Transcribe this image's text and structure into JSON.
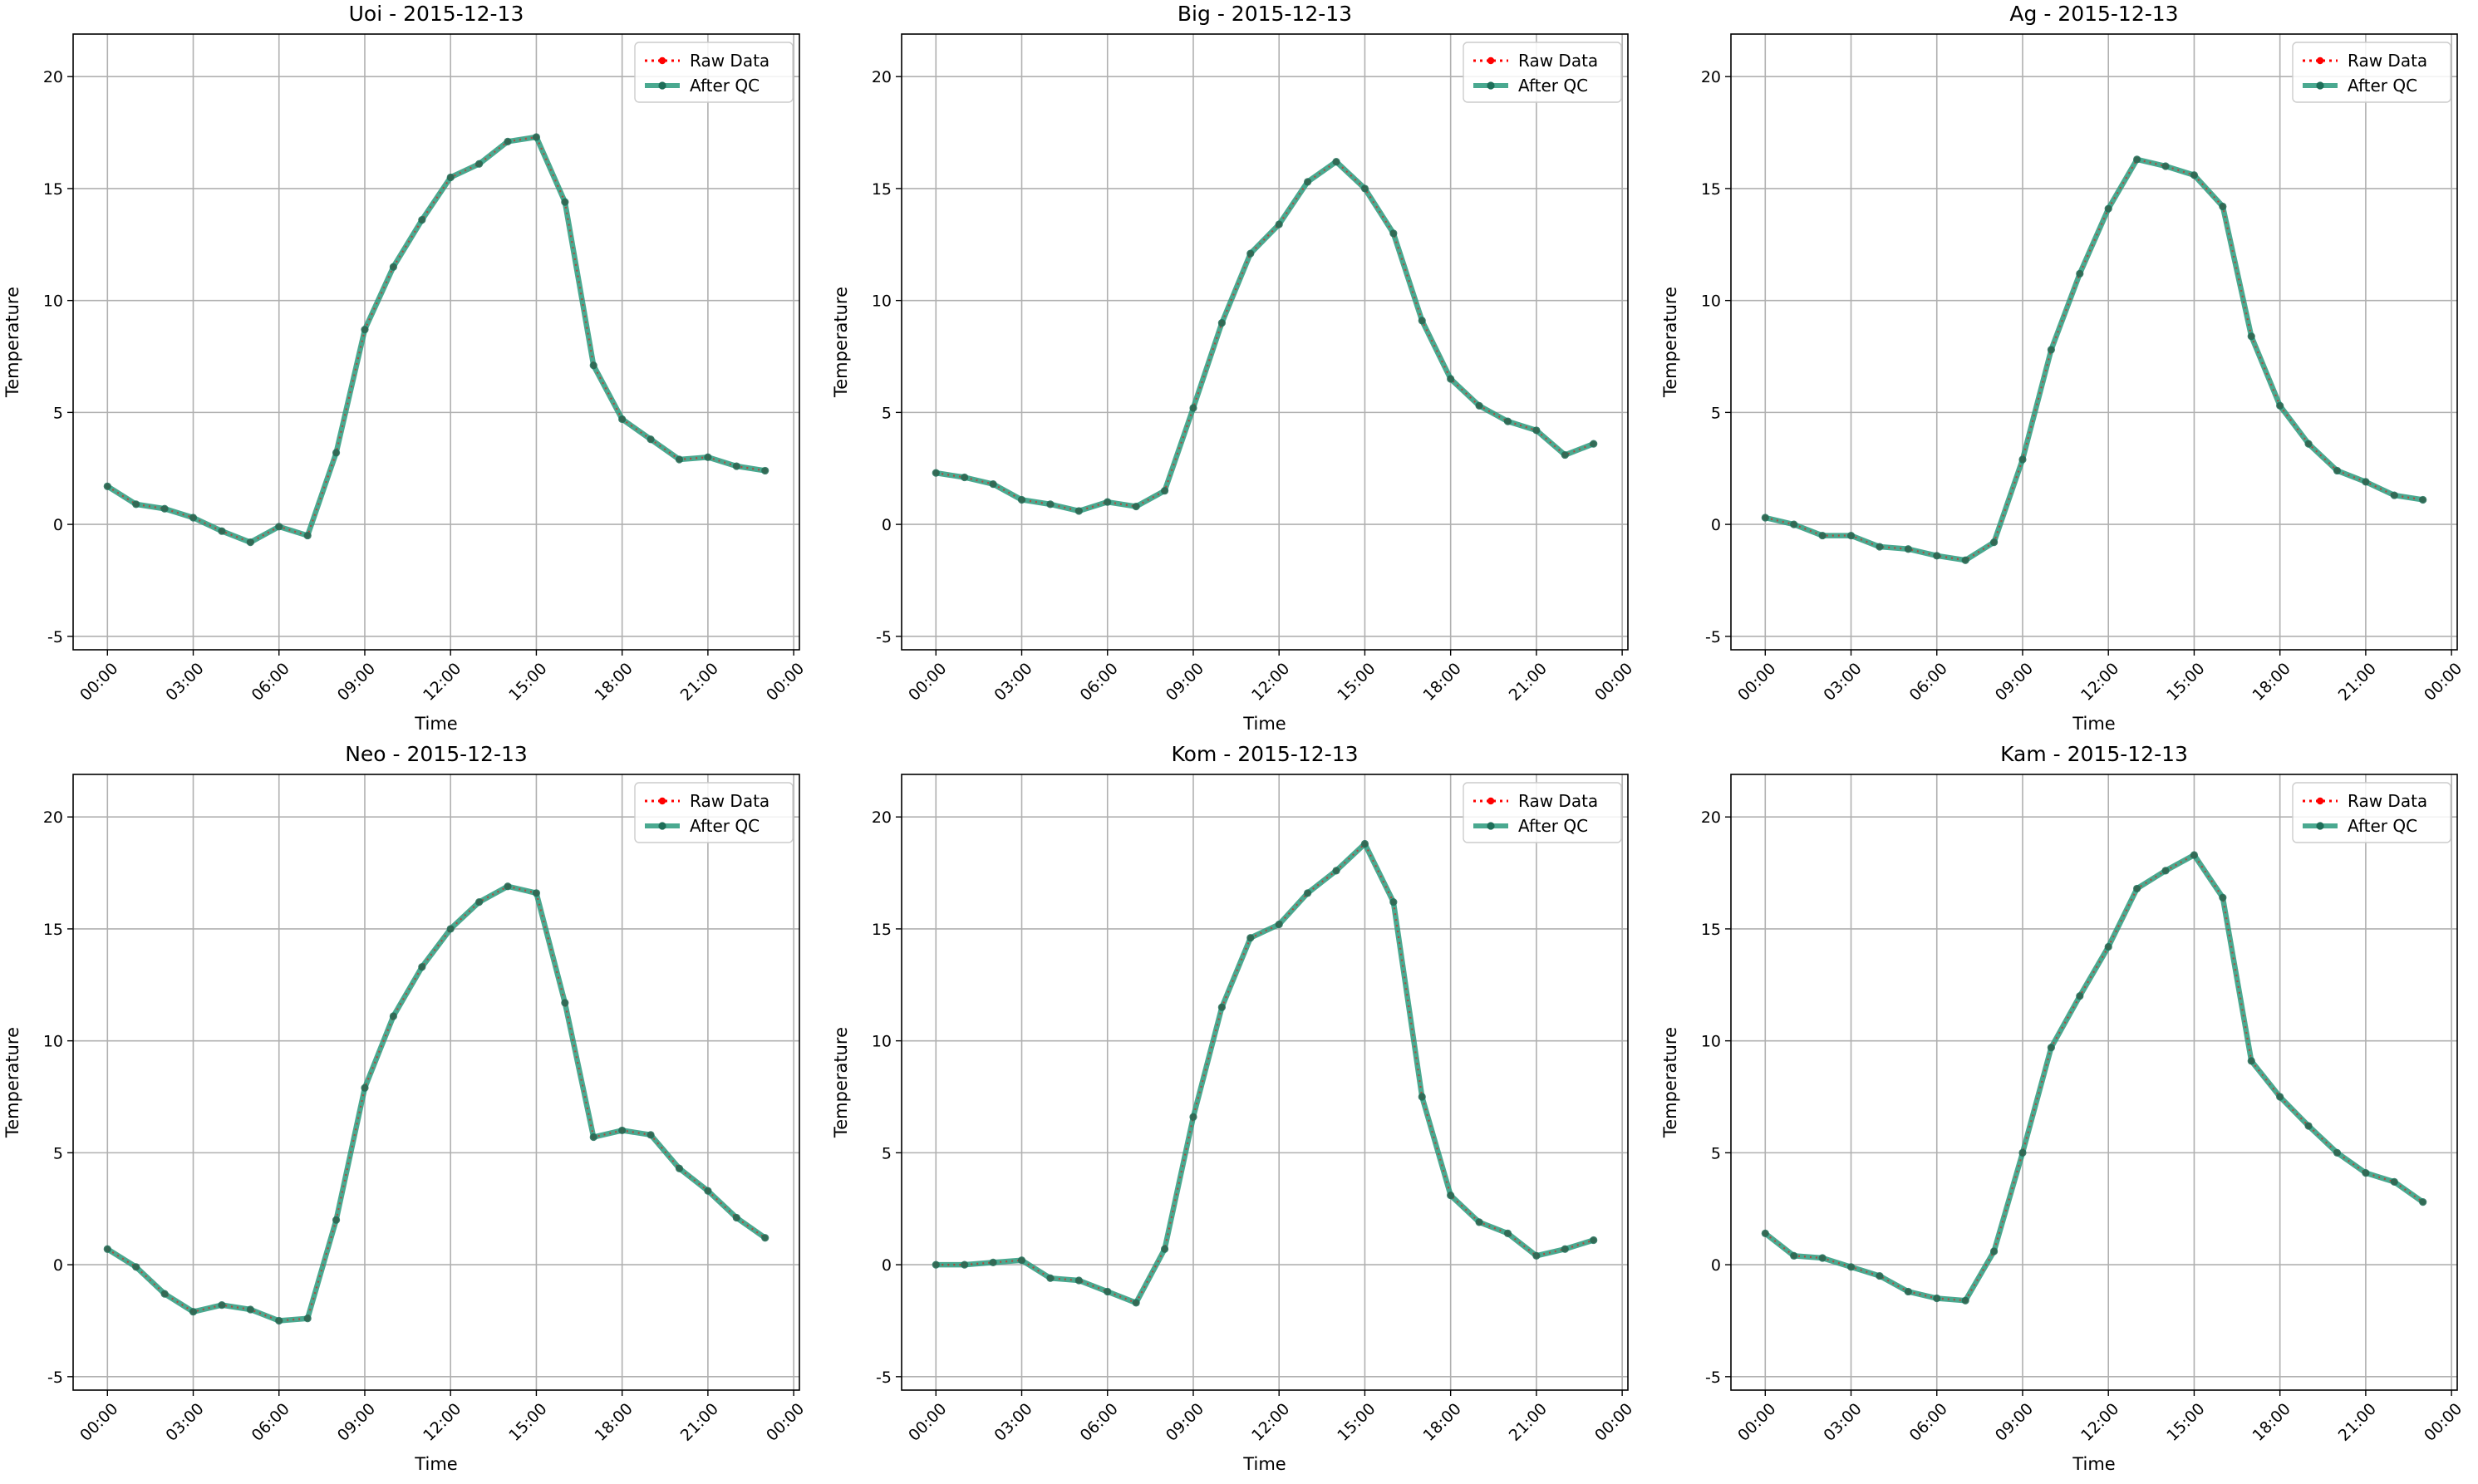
{
  "figure": {
    "background": "#ffffff"
  },
  "legend_entries": [
    "Raw Data",
    "After QC"
  ],
  "colors": {
    "raw": "#ff0000",
    "qc": "#2a9a7c",
    "grid": "#b0b0b0",
    "marker_qc": "#1d6e58"
  },
  "chart_data": [
    {
      "type": "line",
      "title": "Uoi - 2015-12-13",
      "xlabel": "Time",
      "ylabel": "Temperature",
      "xlim": [
        "2015-12-12 22:48",
        "2015-12-14 00:12"
      ],
      "ylim": [
        -5.6,
        21.9
      ],
      "grid": true,
      "legend": "top-right",
      "x": [
        "00:00",
        "01:00",
        "02:00",
        "03:00",
        "04:00",
        "05:00",
        "06:00",
        "07:00",
        "08:00",
        "09:00",
        "10:00",
        "11:00",
        "12:00",
        "13:00",
        "14:00",
        "15:00",
        "16:00",
        "17:00",
        "18:00",
        "19:00",
        "20:00",
        "21:00",
        "22:00",
        "23:00"
      ],
      "x_ticks": [
        "00:00",
        "03:00",
        "06:00",
        "09:00",
        "12:00",
        "15:00",
        "18:00",
        "21:00",
        "00:00"
      ],
      "y_ticks": [
        -5,
        0,
        5,
        10,
        15,
        20
      ],
      "series": [
        {
          "name": "Raw Data",
          "values": [
            1.7,
            0.9,
            0.7,
            0.3,
            -0.3,
            -0.8,
            -0.1,
            -0.5,
            3.2,
            8.7,
            11.5,
            13.6,
            15.5,
            16.1,
            17.1,
            17.3,
            14.4,
            7.1,
            4.7,
            3.8,
            2.9,
            3.0,
            2.6,
            2.4
          ]
        },
        {
          "name": "After QC",
          "values": [
            1.7,
            0.9,
            0.7,
            0.3,
            -0.3,
            -0.8,
            -0.1,
            -0.5,
            3.2,
            8.7,
            11.5,
            13.6,
            15.5,
            16.1,
            17.1,
            17.3,
            14.4,
            7.1,
            4.7,
            3.8,
            2.9,
            3.0,
            2.6,
            2.4
          ]
        }
      ]
    },
    {
      "type": "line",
      "title": "Big - 2015-12-13",
      "xlabel": "Time",
      "ylabel": "Temperature",
      "xlim": [
        "2015-12-12 22:48",
        "2015-12-14 00:12"
      ],
      "ylim": [
        -5.6,
        21.9
      ],
      "grid": true,
      "legend": "top-right",
      "x": [
        "00:00",
        "01:00",
        "02:00",
        "03:00",
        "04:00",
        "05:00",
        "06:00",
        "07:00",
        "08:00",
        "09:00",
        "10:00",
        "11:00",
        "12:00",
        "13:00",
        "14:00",
        "15:00",
        "16:00",
        "17:00",
        "18:00",
        "19:00",
        "20:00",
        "21:00",
        "22:00",
        "23:00"
      ],
      "x_ticks": [
        "00:00",
        "03:00",
        "06:00",
        "09:00",
        "12:00",
        "15:00",
        "18:00",
        "21:00",
        "00:00"
      ],
      "y_ticks": [
        -5,
        0,
        5,
        10,
        15,
        20
      ],
      "series": [
        {
          "name": "Raw Data",
          "values": [
            2.3,
            2.1,
            1.8,
            1.1,
            0.9,
            0.6,
            1.0,
            0.8,
            1.5,
            5.2,
            9.0,
            12.1,
            13.4,
            15.3,
            16.2,
            15.0,
            13.0,
            9.1,
            6.5,
            5.3,
            4.6,
            4.2,
            3.1,
            3.6
          ]
        },
        {
          "name": "After QC",
          "values": [
            2.3,
            2.1,
            1.8,
            1.1,
            0.9,
            0.6,
            1.0,
            0.8,
            1.5,
            5.2,
            9.0,
            12.1,
            13.4,
            15.3,
            16.2,
            15.0,
            13.0,
            9.1,
            6.5,
            5.3,
            4.6,
            4.2,
            3.1,
            3.6
          ]
        }
      ]
    },
    {
      "type": "line",
      "title": "Ag - 2015-12-13",
      "xlabel": "Time",
      "ylabel": "Temperature",
      "xlim": [
        "2015-12-12 22:48",
        "2015-12-14 00:12"
      ],
      "ylim": [
        -5.6,
        21.9
      ],
      "grid": true,
      "legend": "top-right",
      "x": [
        "00:00",
        "01:00",
        "02:00",
        "03:00",
        "04:00",
        "05:00",
        "06:00",
        "07:00",
        "08:00",
        "09:00",
        "10:00",
        "11:00",
        "12:00",
        "13:00",
        "14:00",
        "15:00",
        "16:00",
        "17:00",
        "18:00",
        "19:00",
        "20:00",
        "21:00",
        "22:00",
        "23:00"
      ],
      "x_ticks": [
        "00:00",
        "03:00",
        "06:00",
        "09:00",
        "12:00",
        "15:00",
        "18:00",
        "21:00",
        "00:00"
      ],
      "y_ticks": [
        -5,
        0,
        5,
        10,
        15,
        20
      ],
      "series": [
        {
          "name": "Raw Data",
          "values": [
            0.3,
            0.0,
            -0.5,
            -0.5,
            -1.0,
            -1.1,
            -1.4,
            -1.6,
            -0.8,
            2.9,
            7.8,
            11.2,
            14.1,
            16.3,
            16.0,
            15.6,
            14.2,
            8.4,
            5.3,
            3.6,
            2.4,
            1.9,
            1.3,
            1.1
          ]
        },
        {
          "name": "After QC",
          "values": [
            0.3,
            0.0,
            -0.5,
            -0.5,
            -1.0,
            -1.1,
            -1.4,
            -1.6,
            -0.8,
            2.9,
            7.8,
            11.2,
            14.1,
            16.3,
            16.0,
            15.6,
            14.2,
            8.4,
            5.3,
            3.6,
            2.4,
            1.9,
            1.3,
            1.1
          ]
        }
      ]
    },
    {
      "type": "line",
      "title": "Neo - 2015-12-13",
      "xlabel": "Time",
      "ylabel": "Temperature",
      "xlim": [
        "2015-12-12 22:48",
        "2015-12-14 00:12"
      ],
      "ylim": [
        -5.6,
        21.9
      ],
      "grid": true,
      "legend": "top-right",
      "x": [
        "00:00",
        "01:00",
        "02:00",
        "03:00",
        "04:00",
        "05:00",
        "06:00",
        "07:00",
        "08:00",
        "09:00",
        "10:00",
        "11:00",
        "12:00",
        "13:00",
        "14:00",
        "15:00",
        "16:00",
        "17:00",
        "18:00",
        "19:00",
        "20:00",
        "21:00",
        "22:00",
        "23:00"
      ],
      "x_ticks": [
        "00:00",
        "03:00",
        "06:00",
        "09:00",
        "12:00",
        "15:00",
        "18:00",
        "21:00",
        "00:00"
      ],
      "y_ticks": [
        -5,
        0,
        5,
        10,
        15,
        20
      ],
      "series": [
        {
          "name": "Raw Data",
          "values": [
            0.7,
            -0.1,
            -1.3,
            -2.1,
            -1.8,
            -2.0,
            -2.5,
            -2.4,
            2.0,
            7.9,
            11.1,
            13.3,
            15.0,
            16.2,
            16.9,
            16.6,
            11.7,
            5.7,
            6.0,
            5.8,
            4.3,
            3.3,
            2.1,
            1.2
          ]
        },
        {
          "name": "After QC",
          "values": [
            0.7,
            -0.1,
            -1.3,
            -2.1,
            -1.8,
            -2.0,
            -2.5,
            -2.4,
            2.0,
            7.9,
            11.1,
            13.3,
            15.0,
            16.2,
            16.9,
            16.6,
            11.7,
            5.7,
            6.0,
            5.8,
            4.3,
            3.3,
            2.1,
            1.2
          ]
        }
      ]
    },
    {
      "type": "line",
      "title": "Kom - 2015-12-13",
      "xlabel": "Time",
      "ylabel": "Temperature",
      "xlim": [
        "2015-12-12 22:48",
        "2015-12-14 00:12"
      ],
      "ylim": [
        -5.6,
        21.9
      ],
      "grid": true,
      "legend": "top-right",
      "x": [
        "00:00",
        "01:00",
        "02:00",
        "03:00",
        "04:00",
        "05:00",
        "06:00",
        "07:00",
        "08:00",
        "09:00",
        "10:00",
        "11:00",
        "12:00",
        "13:00",
        "14:00",
        "15:00",
        "16:00",
        "17:00",
        "18:00",
        "19:00",
        "20:00",
        "21:00",
        "22:00",
        "23:00"
      ],
      "x_ticks": [
        "00:00",
        "03:00",
        "06:00",
        "09:00",
        "12:00",
        "15:00",
        "18:00",
        "21:00",
        "00:00"
      ],
      "y_ticks": [
        -5,
        0,
        5,
        10,
        15,
        20
      ],
      "series": [
        {
          "name": "Raw Data",
          "values": [
            0.0,
            0.0,
            0.1,
            0.2,
            -0.6,
            -0.7,
            -1.2,
            -1.7,
            0.7,
            6.6,
            11.5,
            14.6,
            15.2,
            16.6,
            17.6,
            18.8,
            16.2,
            7.5,
            3.1,
            1.9,
            1.4,
            0.4,
            0.7,
            1.1
          ]
        },
        {
          "name": "After QC",
          "values": [
            0.0,
            0.0,
            0.1,
            0.2,
            -0.6,
            -0.7,
            -1.2,
            -1.7,
            0.7,
            6.6,
            11.5,
            14.6,
            15.2,
            16.6,
            17.6,
            18.8,
            16.2,
            7.5,
            3.1,
            1.9,
            1.4,
            0.4,
            0.7,
            1.1
          ]
        }
      ]
    },
    {
      "type": "line",
      "title": "Kam - 2015-12-13",
      "xlabel": "Time",
      "ylabel": "Temperature",
      "xlim": [
        "2015-12-12 22:48",
        "2015-12-14 00:12"
      ],
      "ylim": [
        -5.6,
        21.9
      ],
      "grid": true,
      "legend": "top-right",
      "x": [
        "00:00",
        "01:00",
        "02:00",
        "03:00",
        "04:00",
        "05:00",
        "06:00",
        "07:00",
        "08:00",
        "09:00",
        "10:00",
        "11:00",
        "12:00",
        "13:00",
        "14:00",
        "15:00",
        "16:00",
        "17:00",
        "18:00",
        "19:00",
        "20:00",
        "21:00",
        "22:00",
        "23:00"
      ],
      "x_ticks": [
        "00:00",
        "03:00",
        "06:00",
        "09:00",
        "12:00",
        "15:00",
        "18:00",
        "21:00",
        "00:00"
      ],
      "y_ticks": [
        -5,
        0,
        5,
        10,
        15,
        20
      ],
      "series": [
        {
          "name": "Raw Data",
          "values": [
            1.4,
            0.4,
            0.3,
            -0.1,
            -0.5,
            -1.2,
            -1.5,
            -1.6,
            0.6,
            5.0,
            9.7,
            12.0,
            14.2,
            16.8,
            17.6,
            18.3,
            16.4,
            9.1,
            7.5,
            6.2,
            5.0,
            4.1,
            3.7,
            2.8
          ]
        },
        {
          "name": "After QC",
          "values": [
            1.4,
            0.4,
            0.3,
            -0.1,
            -0.5,
            -1.2,
            -1.5,
            -1.6,
            0.6,
            5.0,
            9.7,
            12.0,
            14.2,
            16.8,
            17.6,
            18.3,
            16.4,
            9.1,
            7.5,
            6.2,
            5.0,
            4.1,
            3.7,
            2.8
          ]
        }
      ]
    }
  ]
}
